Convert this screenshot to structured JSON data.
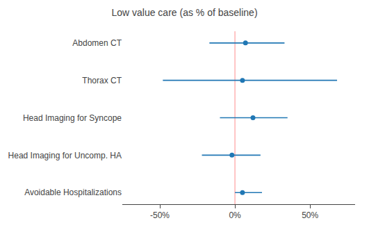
{
  "chart_data": {
    "type": "scatter",
    "title": "Low value care (as % of baseline)",
    "categories": [
      "Avoidable Hospitalizations",
      "Head Imaging for Uncomp. HA",
      "Head Imaging for Syncope",
      "Thorax CT",
      "Abdomen CT"
    ],
    "values": [
      5,
      -2,
      12,
      5,
      7
    ],
    "ci_low": [
      0,
      -22,
      -10,
      -48,
      -17
    ],
    "ci_high": [
      18,
      17,
      35,
      68,
      33
    ],
    "color": "#2077b4",
    "marker": "circle",
    "xlim": [
      -75,
      80
    ],
    "xticks": [
      {
        "value": -50,
        "label": "-50%"
      },
      {
        "value": 0,
        "label": "0%"
      },
      {
        "value": 50,
        "label": "50%"
      }
    ],
    "grid": false,
    "reference_line": {
      "x": 0,
      "color": "#ffb3b3"
    }
  }
}
